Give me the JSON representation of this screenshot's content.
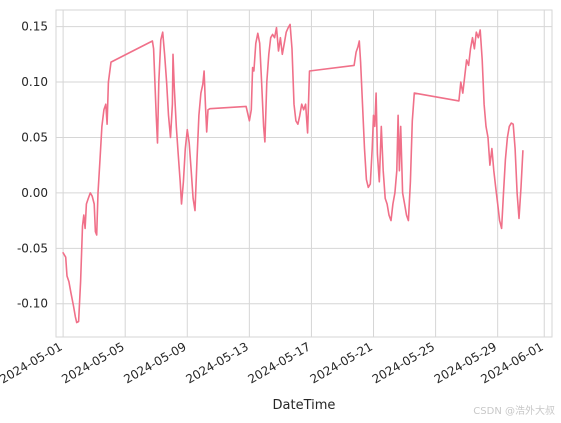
{
  "chart_data": {
    "type": "line",
    "title": "",
    "xlabel": "DateTime",
    "ylabel": "",
    "ylim": [
      -0.13,
      0.165
    ],
    "grid": true,
    "legend": "none",
    "color": "#f07089",
    "x_ticks": [
      "2024-05-01",
      "2024-05-05",
      "2024-05-09",
      "2024-05-13",
      "2024-05-17",
      "2024-05-21",
      "2024-05-25",
      "2024-05-29",
      "2024-06-01"
    ],
    "y_ticks": [
      "0.15",
      "0.10",
      "0.05",
      "0.00",
      "-0.05",
      "-0.10"
    ],
    "y_tick_values": [
      0.15,
      0.1,
      0.05,
      0.0,
      -0.05,
      -0.1
    ],
    "series": [
      {
        "points": [
          [
            "2024-05-01 00:00",
            -0.054
          ],
          [
            "2024-05-01 04:00",
            -0.058
          ],
          [
            "2024-05-01 06:00",
            -0.075
          ],
          [
            "2024-05-01 09:00",
            -0.08
          ],
          [
            "2024-05-01 12:00",
            -0.09
          ],
          [
            "2024-05-01 16:00",
            -0.102
          ],
          [
            "2024-05-01 19:00",
            -0.112
          ],
          [
            "2024-05-01 21:00",
            -0.117
          ],
          [
            "2024-05-02 00:00",
            -0.116
          ],
          [
            "2024-05-02 03:00",
            -0.08
          ],
          [
            "2024-05-02 06:00",
            -0.03
          ],
          [
            "2024-05-02 08:00",
            -0.02
          ],
          [
            "2024-05-02 10:00",
            -0.032
          ],
          [
            "2024-05-02 12:00",
            -0.01
          ],
          [
            "2024-05-02 15:00",
            -0.005
          ],
          [
            "2024-05-02 18:00",
            0.0
          ],
          [
            "2024-05-02 21:00",
            -0.003
          ],
          [
            "2024-05-03 00:00",
            -0.01
          ],
          [
            "2024-05-03 02:00",
            -0.035
          ],
          [
            "2024-05-03 04:00",
            -0.038
          ],
          [
            "2024-05-03 06:00",
            0.0
          ],
          [
            "2024-05-03 09:00",
            0.03
          ],
          [
            "2024-05-03 12:00",
            0.06
          ],
          [
            "2024-05-03 15:00",
            0.075
          ],
          [
            "2024-05-03 18:00",
            0.08
          ],
          [
            "2024-05-03 20:00",
            0.062
          ],
          [
            "2024-05-03 22:00",
            0.1
          ],
          [
            "2024-05-04 02:00",
            0.118
          ],
          [
            "2024-05-06 18:00",
            0.137
          ],
          [
            "2024-05-06 20:00",
            0.13
          ],
          [
            "2024-05-07 00:00",
            0.07
          ],
          [
            "2024-05-07 02:00",
            0.045
          ],
          [
            "2024-05-07 04:00",
            0.1
          ],
          [
            "2024-05-07 07:00",
            0.138
          ],
          [
            "2024-05-07 10:00",
            0.145
          ],
          [
            "2024-05-07 13:00",
            0.125
          ],
          [
            "2024-05-07 16:00",
            0.1
          ],
          [
            "2024-05-07 19:00",
            0.07
          ],
          [
            "2024-05-07 22:00",
            0.05
          ],
          [
            "2024-05-08 01:00",
            0.08
          ],
          [
            "2024-05-08 02:00",
            0.125
          ],
          [
            "2024-05-08 04:00",
            0.095
          ],
          [
            "2024-05-08 07:00",
            0.06
          ],
          [
            "2024-05-08 10:00",
            0.035
          ],
          [
            "2024-05-08 13:00",
            0.01
          ],
          [
            "2024-05-08 15:00",
            -0.01
          ],
          [
            "2024-05-08 18:00",
            0.01
          ],
          [
            "2024-05-08 21:00",
            0.04
          ],
          [
            "2024-05-09 00:00",
            0.057
          ],
          [
            "2024-05-09 03:00",
            0.045
          ],
          [
            "2024-05-09 06:00",
            0.02
          ],
          [
            "2024-05-09 09:00",
            -0.005
          ],
          [
            "2024-05-09 12:00",
            -0.016
          ],
          [
            "2024-05-09 15:00",
            0.03
          ],
          [
            "2024-05-09 18:00",
            0.07
          ],
          [
            "2024-05-09 21:00",
            0.09
          ],
          [
            "2024-05-10 00:00",
            0.098
          ],
          [
            "2024-05-10 02:00",
            0.11
          ],
          [
            "2024-05-10 04:00",
            0.08
          ],
          [
            "2024-05-10 06:00",
            0.055
          ],
          [
            "2024-05-10 08:00",
            0.075
          ],
          [
            "2024-05-10 11:00",
            0.076
          ],
          [
            "2024-05-12 19:00",
            0.078
          ],
          [
            "2024-05-13 00:00",
            0.065
          ],
          [
            "2024-05-13 03:00",
            0.075
          ],
          [
            "2024-05-13 05:00",
            0.113
          ],
          [
            "2024-05-13 07:00",
            0.11
          ],
          [
            "2024-05-13 10:00",
            0.135
          ],
          [
            "2024-05-13 13:00",
            0.144
          ],
          [
            "2024-05-13 16:00",
            0.135
          ],
          [
            "2024-05-13 19:00",
            0.1
          ],
          [
            "2024-05-13 22:00",
            0.06
          ],
          [
            "2024-05-14 00:00",
            0.046
          ],
          [
            "2024-05-14 03:00",
            0.1
          ],
          [
            "2024-05-14 06:00",
            0.125
          ],
          [
            "2024-05-14 09:00",
            0.14
          ],
          [
            "2024-05-14 12:00",
            0.143
          ],
          [
            "2024-05-14 15:00",
            0.14
          ],
          [
            "2024-05-14 18:00",
            0.149
          ],
          [
            "2024-05-14 21:00",
            0.128
          ],
          [
            "2024-05-15 00:00",
            0.14
          ],
          [
            "2024-05-15 03:00",
            0.125
          ],
          [
            "2024-05-15 06:00",
            0.135
          ],
          [
            "2024-05-15 09:00",
            0.145
          ],
          [
            "2024-05-15 12:00",
            0.149
          ],
          [
            "2024-05-15 15:00",
            0.152
          ],
          [
            "2024-05-15 18:00",
            0.13
          ],
          [
            "2024-05-15 21:00",
            0.08
          ],
          [
            "2024-05-16 00:00",
            0.065
          ],
          [
            "2024-05-16 03:00",
            0.062
          ],
          [
            "2024-05-16 06:00",
            0.07
          ],
          [
            "2024-05-16 09:00",
            0.08
          ],
          [
            "2024-05-16 12:00",
            0.075
          ],
          [
            "2024-05-16 15:00",
            0.08
          ],
          [
            "2024-05-16 18:00",
            0.054
          ],
          [
            "2024-05-16 21:00",
            0.11
          ],
          [
            "2024-05-19 18:00",
            0.115
          ],
          [
            "2024-05-19 21:00",
            0.127
          ],
          [
            "2024-05-20 00:00",
            0.132
          ],
          [
            "2024-05-20 02:00",
            0.137
          ],
          [
            "2024-05-20 04:00",
            0.118
          ],
          [
            "2024-05-20 07:00",
            0.08
          ],
          [
            "2024-05-20 10:00",
            0.04
          ],
          [
            "2024-05-20 13:00",
            0.012
          ],
          [
            "2024-05-20 16:00",
            0.005
          ],
          [
            "2024-05-20 19:00",
            0.008
          ],
          [
            "2024-05-20 22:00",
            0.04
          ],
          [
            "2024-05-21 00:00",
            0.07
          ],
          [
            "2024-05-21 02:00",
            0.06
          ],
          [
            "2024-05-21 04:00",
            0.09
          ],
          [
            "2024-05-21 06:00",
            0.035
          ],
          [
            "2024-05-21 09:00",
            0.01
          ],
          [
            "2024-05-21 12:00",
            0.06
          ],
          [
            "2024-05-21 15:00",
            0.02
          ],
          [
            "2024-05-21 18:00",
            -0.005
          ],
          [
            "2024-05-21 21:00",
            -0.01
          ],
          [
            "2024-05-22 00:00",
            -0.02
          ],
          [
            "2024-05-22 03:00",
            -0.025
          ],
          [
            "2024-05-22 06:00",
            -0.01
          ],
          [
            "2024-05-22 09:00",
            0.0
          ],
          [
            "2024-05-22 12:00",
            0.02
          ],
          [
            "2024-05-22 14:00",
            0.07
          ],
          [
            "2024-05-22 16:00",
            0.02
          ],
          [
            "2024-05-22 18:00",
            0.06
          ],
          [
            "2024-05-22 21:00",
            0.0
          ],
          [
            "2024-05-23 00:00",
            -0.01
          ],
          [
            "2024-05-23 03:00",
            -0.02
          ],
          [
            "2024-05-23 06:00",
            -0.025
          ],
          [
            "2024-05-23 09:00",
            0.01
          ],
          [
            "2024-05-23 12:00",
            0.065
          ],
          [
            "2024-05-23 15:00",
            0.09
          ],
          [
            "2024-05-26 12:00",
            0.083
          ],
          [
            "2024-05-26 15:00",
            0.1
          ],
          [
            "2024-05-26 18:00",
            0.09
          ],
          [
            "2024-05-26 21:00",
            0.105
          ],
          [
            "2024-05-27 00:00",
            0.12
          ],
          [
            "2024-05-27 03:00",
            0.115
          ],
          [
            "2024-05-27 06:00",
            0.13
          ],
          [
            "2024-05-27 09:00",
            0.14
          ],
          [
            "2024-05-27 12:00",
            0.13
          ],
          [
            "2024-05-27 15:00",
            0.145
          ],
          [
            "2024-05-27 18:00",
            0.14
          ],
          [
            "2024-05-27 21:00",
            0.147
          ],
          [
            "2024-05-28 00:00",
            0.12
          ],
          [
            "2024-05-28 03:00",
            0.08
          ],
          [
            "2024-05-28 06:00",
            0.06
          ],
          [
            "2024-05-28 09:00",
            0.05
          ],
          [
            "2024-05-28 12:00",
            0.025
          ],
          [
            "2024-05-28 15:00",
            0.04
          ],
          [
            "2024-05-28 18:00",
            0.02
          ],
          [
            "2024-05-28 21:00",
            0.005
          ],
          [
            "2024-05-29 00:00",
            -0.01
          ],
          [
            "2024-05-29 03:00",
            -0.025
          ],
          [
            "2024-05-29 06:00",
            -0.032
          ],
          [
            "2024-05-29 09:00",
            0.0
          ],
          [
            "2024-05-29 12:00",
            0.03
          ],
          [
            "2024-05-29 15:00",
            0.05
          ],
          [
            "2024-05-29 18:00",
            0.06
          ],
          [
            "2024-05-29 21:00",
            0.063
          ],
          [
            "2024-05-30 00:00",
            0.062
          ],
          [
            "2024-05-30 03:00",
            0.04
          ],
          [
            "2024-05-30 06:00",
            0.0
          ],
          [
            "2024-05-30 09:00",
            -0.023
          ],
          [
            "2024-05-30 12:00",
            0.005
          ],
          [
            "2024-05-30 15:00",
            0.038
          ]
        ]
      }
    ]
  },
  "watermark": "CSDN @浩外大叔"
}
